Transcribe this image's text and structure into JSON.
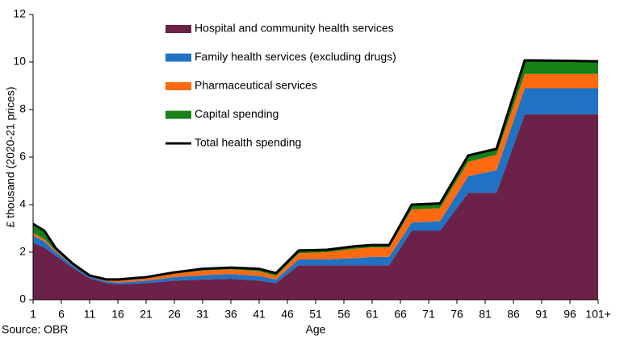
{
  "chart_data": {
    "type": "stacked-area",
    "y_label": "£ thousand (2020-21 prices)",
    "x_label": "Age",
    "source": "Source: OBR",
    "x": [
      1,
      3,
      5,
      8,
      11,
      14,
      16,
      21,
      26,
      31,
      36,
      41,
      44,
      48,
      53,
      58,
      61,
      64,
      68,
      73,
      78,
      83,
      88,
      96,
      101
    ],
    "xlim": [
      1,
      101
    ],
    "xticks": [
      1,
      6,
      11,
      16,
      21,
      26,
      31,
      36,
      41,
      46,
      51,
      56,
      61,
      66,
      71,
      76,
      81,
      86,
      91,
      96,
      {
        "value": 101,
        "label": "101+"
      }
    ],
    "ylim": [
      0,
      12
    ],
    "yticks": [
      0,
      2,
      4,
      6,
      8,
      10,
      12
    ],
    "grid": false,
    "series": [
      {
        "name": "Hospital and community health services",
        "color": "#6b2148",
        "values": [
          2.4,
          2.2,
          1.85,
          1.35,
          0.9,
          0.7,
          0.65,
          0.7,
          0.8,
          0.85,
          0.88,
          0.8,
          0.7,
          1.45,
          1.45,
          1.45,
          1.45,
          1.45,
          2.9,
          2.9,
          4.5,
          4.5,
          7.8,
          7.8,
          7.8
        ]
      },
      {
        "name": "Family health services (excluding drugs)",
        "color": "#1f72c4",
        "values": [
          0.3,
          0.25,
          0.15,
          0.1,
          0.07,
          0.07,
          0.07,
          0.1,
          0.15,
          0.18,
          0.2,
          0.2,
          0.15,
          0.25,
          0.25,
          0.3,
          0.35,
          0.35,
          0.35,
          0.4,
          0.7,
          0.95,
          1.1,
          1.1,
          1.1
        ]
      },
      {
        "name": "Pharmaceutical services",
        "color": "#ff6a10",
        "values": [
          0.1,
          0.1,
          0.05,
          0.03,
          0.02,
          0.05,
          0.07,
          0.1,
          0.15,
          0.2,
          0.2,
          0.2,
          0.15,
          0.25,
          0.3,
          0.4,
          0.4,
          0.4,
          0.55,
          0.55,
          0.6,
          0.65,
          0.6,
          0.6,
          0.6
        ]
      },
      {
        "name": "Capital spending",
        "color": "#178017",
        "values": [
          0.39,
          0.35,
          0.12,
          0.04,
          0.03,
          0.03,
          0.06,
          0.05,
          0.05,
          0.07,
          0.07,
          0.1,
          0.12,
          0.12,
          0.1,
          0.1,
          0.1,
          0.1,
          0.2,
          0.2,
          0.27,
          0.25,
          0.57,
          0.55,
          0.53
        ]
      }
    ],
    "total": {
      "name": "Total health spending",
      "color": "#000000",
      "values": [
        3.19,
        2.9,
        2.17,
        1.52,
        1.02,
        0.85,
        0.85,
        0.95,
        1.15,
        1.3,
        1.35,
        1.3,
        1.12,
        2.07,
        2.1,
        2.25,
        2.3,
        2.3,
        4.0,
        4.05,
        6.07,
        6.35,
        10.07,
        10.05,
        10.03
      ]
    }
  }
}
